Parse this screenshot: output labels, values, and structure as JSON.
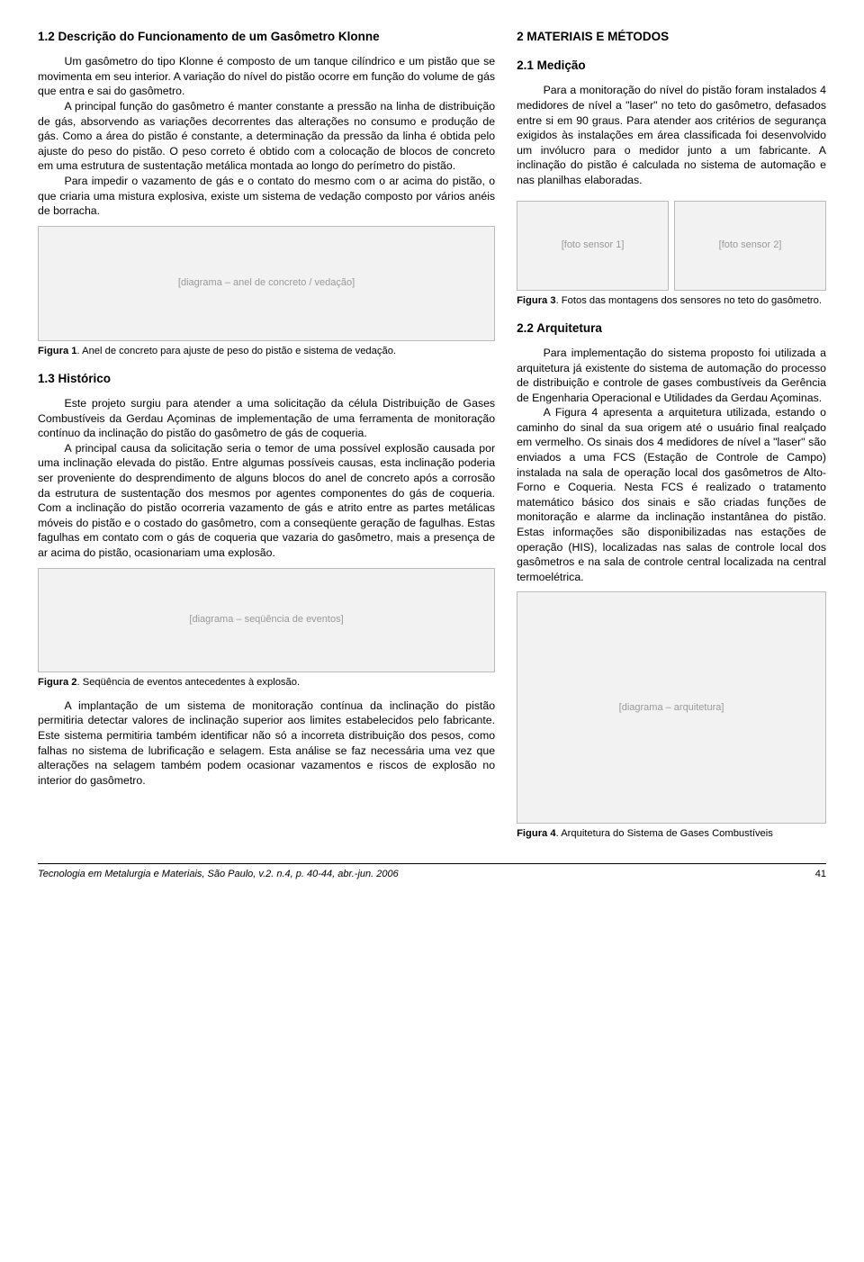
{
  "left": {
    "h1_2": "1.2 Descrição do Funcionamento de um Gasômetro Klonne",
    "p1": "Um gasômetro do tipo Klonne é composto de um tanque cilíndrico e um pistão que se movimenta em seu interior. A variação do nível do pistão ocorre em função do volume de gás que entra e sai do gasômetro.",
    "p2": "A principal função do gasômetro é manter constante a pressão na linha de distribuição de gás, absorvendo as variações decorrentes das alterações no consumo e produção de gás. Como a área do pistão é constante, a determinação da pressão da linha é obtida pelo ajuste do peso do pistão. O peso correto é obtido com a colocação de blocos de concreto em uma estrutura de sustentação metálica montada ao longo do perímetro do pistão.",
    "p3": "Para impedir o vazamento de gás e o contato do mesmo com o ar acima do pistão, o que criaria uma mistura explosiva, existe um sistema de vedação composto por vários anéis de borracha.",
    "fig1_label": "Figura 1",
    "fig1_text": ". Anel de concreto para ajuste de peso do pistão e sistema de vedação.",
    "h1_3": "1.3 Histórico",
    "p4": "Este projeto surgiu para atender a uma solicitação da célula Distribuição de Gases Combustíveis da Gerdau Açominas de implementação de uma ferramenta de monitoração contínuo da inclinação do pistão do gasômetro de gás de coqueria.",
    "p5": "A principal causa da solicitação seria o temor de uma possível explosão causada por uma inclinação elevada do pistão. Entre algumas possíveis causas, esta inclinação poderia ser proveniente do desprendimento de alguns blocos do anel de concreto após a corrosão da estrutura de sustentação dos mesmos por agentes componentes do gás de coqueria. Com a inclinação do pistão ocorreria vazamento de gás e atrito entre as partes metálicas móveis do pistão e o costado do gasômetro, com a conseqüente geração de fagulhas. Estas fagulhas em contato com o gás de coqueria que vazaria do gasômetro, mais a presença de ar acima do pistão, ocasionariam uma explosão.",
    "fig2_label": "Figura 2",
    "fig2_text": ". Seqüência de eventos antecedentes à explosão.",
    "p6": "A implantação de um sistema de monitoração contínua da inclinação do pistão permitiria detectar valores de inclinação superior aos limites estabelecidos pelo fabricante. Este sistema permitiria também identificar não só a incorreta distribuição dos pesos, como falhas no sistema de lubrificação e selagem. Esta análise se faz necessária uma vez que alterações na selagem também podem ocasionar vazamentos e riscos de explosão no interior do gasômetro."
  },
  "right": {
    "h2": "2 MATERIAIS E MÉTODOS",
    "h2_1": "2.1 Medição",
    "p1": "Para a monitoração do nível do pistão foram instalados 4 medidores de nível a \"laser\" no teto do gasômetro, defasados entre si em 90 graus. Para atender aos critérios de segurança exigidos às instalações em área classificada foi desenvolvido um invólucro para o medidor junto a um fabricante. A inclinação do pistão é calculada no sistema de automação e nas planilhas elaboradas.",
    "fig3_label": "Figura 3",
    "fig3_text": ". Fotos das montagens dos sensores no teto do gasômetro.",
    "h2_2": "2.2 Arquitetura",
    "p2": "Para implementação do sistema proposto foi utilizada a arquitetura já existente do sistema de automação do processo de distribuição e controle de gases combustíveis da Gerência de Engenharia Operacional e Utilidades da Gerdau Açominas.",
    "p3": "A Figura 4 apresenta a arquitetura utilizada, estando o caminho do sinal da sua origem até o usuário final realçado em vermelho. Os sinais dos 4 medidores de nível a \"laser\" são enviados a uma FCS (Estação de Controle de Campo) instalada na sala de operação local dos gasômetros de Alto-Forno e Coqueria. Nesta FCS é realizado o tratamento matemático básico dos sinais e são criadas funções de monitoração e alarme da inclinação instantânea do pistão. Estas informações são disponibilizadas nas estações de operação (HIS), localizadas nas salas de controle local dos gasômetros e na sala de controle central localizada na central termoelétrica.",
    "fig4_label": "Figura 4",
    "fig4_text": ". Arquitetura do Sistema de Gases Combustíveis"
  },
  "footer": {
    "journal": "Tecnologia em Metalurgia e Materiais, São Paulo, v.2. n.4, p. 40-44, abr.-jun. 2006",
    "page": "41"
  },
  "figplaceholders": {
    "f1": "[diagrama – anel de concreto / vedação]",
    "f2": "[diagrama – seqüência de eventos]",
    "f3a": "[foto sensor 1]",
    "f3b": "[foto sensor 2]",
    "f4": "[diagrama – arquitetura]"
  }
}
